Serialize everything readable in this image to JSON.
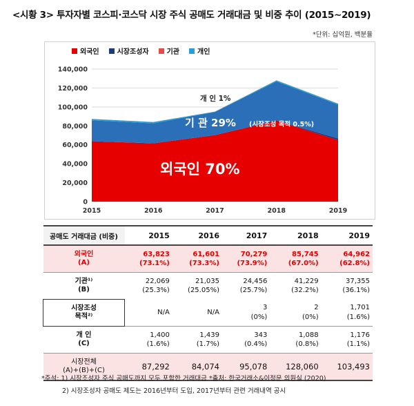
{
  "title": "<시황 3> 투자자별 코스피·코스닥 시장 주식 공매도 거래대금 및 비중 추이 (2015~2019)",
  "unit": "*단위: 십억원, 백분율",
  "legend": [
    {
      "label": "외국인",
      "color": "#e60000"
    },
    {
      "label": "시장조성자",
      "color": "#1f3a7a"
    },
    {
      "label": "기관",
      "color": "#e84a4a"
    },
    {
      "label": "개인",
      "color": "#2a9fd6"
    }
  ],
  "chart_data": {
    "type": "area",
    "x": [
      "2015",
      "2016",
      "2017",
      "2018",
      "2019"
    ],
    "ylim": [
      0,
      140000
    ],
    "yticks": [
      "0",
      "20,000",
      "40,000",
      "60,000",
      "80,000",
      "100,000",
      "120,000",
      "140,000"
    ],
    "series": [
      {
        "name": "외국인",
        "values": [
          63823,
          61601,
          70279,
          85745,
          64962
        ],
        "color": "#e60000"
      },
      {
        "name": "시장조성자",
        "values": [
          0,
          0,
          3,
          2,
          1701
        ],
        "color": "#1f3a7a"
      },
      {
        "name": "기관",
        "values": [
          22069,
          21035,
          24456,
          41229,
          35654
        ],
        "color": "#2a6fb8"
      },
      {
        "name": "개인",
        "values": [
          1400,
          1439,
          343,
          1088,
          1176
        ],
        "color": "#2a9fd6"
      }
    ],
    "annotations": {
      "individual": "개 인 1%",
      "institution": "기 관 29%",
      "institution_sub": "(시장조성 목적 0.5%)",
      "foreign": "외국인 70%"
    }
  },
  "table": {
    "header": [
      "공매도 거래대금 (비중)",
      "2015",
      "2016",
      "2017",
      "2018",
      "2019"
    ],
    "foreign": {
      "label1": "외국인",
      "label2": "(A)",
      "v": [
        "63,823",
        "61,601",
        "70,279",
        "85,745",
        "64,962"
      ],
      "p": [
        "(73.1%)",
        "(73.3%)",
        "(73.9%)",
        "(67.0%)",
        "(62.8%)"
      ]
    },
    "inst": {
      "label1": "기관¹⁾",
      "label2": "(B)",
      "v": [
        "22,069",
        "21,035",
        "24,456",
        "41,229",
        "37,355"
      ],
      "p": [
        "(25.3%)",
        "(25.05%)",
        "(25.7%)",
        "(32.2%)",
        "(36.1%)"
      ]
    },
    "mm": {
      "label1": "시장조성",
      "label2": "목적²⁾",
      "v": [
        "N/A",
        "N/A",
        "3",
        "2",
        "1,701"
      ],
      "p": [
        "",
        "",
        "(0%)",
        "(0%)",
        "(1.6%)"
      ]
    },
    "indiv": {
      "label1": "개 인",
      "label2": "(C)",
      "v": [
        "1,400",
        "1,439",
        "343",
        "1,088",
        "1,176"
      ],
      "p": [
        "(1.6%)",
        "(1.7%)",
        "(0.4%)",
        "(0.8%)",
        "(1.1%)"
      ]
    },
    "total": {
      "label1": "시장전체",
      "label2": "(A)+(B)+(C)",
      "v": [
        "87,292",
        "84,074",
        "95,078",
        "128,060",
        "103,493"
      ]
    }
  },
  "notes": [
    "*주석: 1) 시장조성자 주식 공매도까지 모두 포함한 거래대금 *출처: 한국거래소&이정문 의원실 (2020)",
    "2) 시장조성자 공매도 제도는 2016년부터 도입, 2017년부터 관련 거래내역 공시"
  ]
}
